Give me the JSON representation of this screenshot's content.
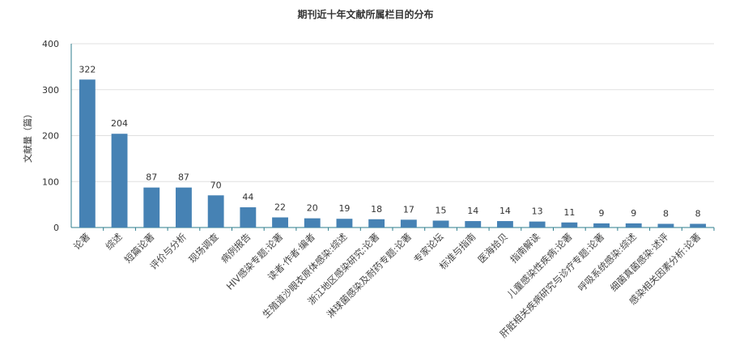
{
  "chart_data": {
    "type": "bar",
    "title": "期刊近十年文献所属栏目的分布",
    "xlabel": "",
    "ylabel": "文献量（篇）",
    "ylim": [
      0,
      400
    ],
    "yticks": [
      0,
      100,
      200,
      300,
      400
    ],
    "grid": true,
    "bar_color": "#4682b4",
    "categories": [
      "论著",
      "综述",
      "短篇论著",
      "评价与分析",
      "现场调查",
      "病例报告",
      "HIV感染专题:论著",
      "读者·作者·编者",
      "生殖道沙眼衣原体感染:综述",
      "浙江地区感染研究:论著",
      "淋球菌感染及耐药专题:论著",
      "专家论坛",
      "标准与指南",
      "医海拾贝",
      "指南解读",
      "儿童感染性疾病:论著",
      "肝脏相关疾病研究与诊疗专题:论著",
      "呼吸系统感染:综述",
      "细菌真菌感染·述评",
      "感染相关因素分析:论著"
    ],
    "values": [
      322,
      204,
      87,
      87,
      70,
      44,
      22,
      20,
      19,
      18,
      17,
      15,
      14,
      14,
      13,
      11,
      9,
      9,
      8,
      8
    ]
  }
}
